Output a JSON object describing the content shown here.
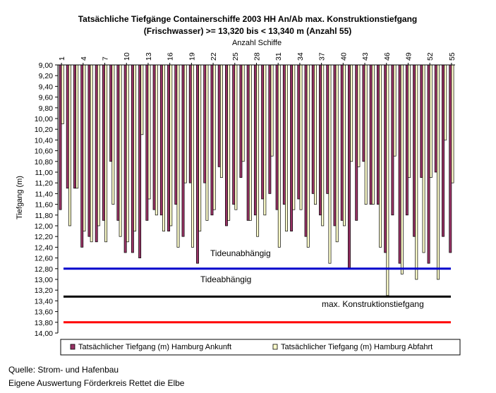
{
  "chart_data": {
    "type": "bar",
    "title_line1": "Tatsächliche Tiefgänge Containerschiffe 2003 HH An/Ab max. Konstruktionstiefgang",
    "title_line2": "(Frischwasser) >= 13,320 bis < 13,340 m (Anzahl 55)",
    "xlabel": "Anzahl Schiffe",
    "ylabel": "Tiefgang (m)",
    "ylim": [
      9.0,
      14.0
    ],
    "y_inverted": true,
    "y_ticks": [
      "9,00",
      "9,20",
      "9,40",
      "9,60",
      "9,80",
      "10,00",
      "10,20",
      "10,40",
      "10,60",
      "10,80",
      "11,00",
      "11,20",
      "11,40",
      "11,60",
      "11,80",
      "12,00",
      "12,20",
      "12,40",
      "12,60",
      "12,80",
      "13,00",
      "13,20",
      "13,40",
      "13,60",
      "13,80",
      "14,00"
    ],
    "x_ticks": [
      "1",
      "4",
      "7",
      "10",
      "13",
      "16",
      "19",
      "22",
      "25",
      "28",
      "31",
      "34",
      "37",
      "40",
      "43",
      "46",
      "49",
      "52",
      "55"
    ],
    "categories": [
      1,
      2,
      3,
      4,
      5,
      6,
      7,
      8,
      9,
      10,
      11,
      12,
      13,
      14,
      15,
      16,
      17,
      18,
      19,
      20,
      21,
      22,
      23,
      24,
      25,
      26,
      27,
      28,
      29,
      30,
      31,
      32,
      33,
      34,
      35,
      36,
      37,
      38,
      39,
      40,
      41,
      42,
      43,
      44,
      45,
      46,
      47,
      48,
      49,
      50,
      51,
      52,
      53,
      54,
      55
    ],
    "series": [
      {
        "name": "Tatsächlicher Tiefgang (m) Hamburg Ankunft",
        "color": "#993366",
        "values": [
          11.7,
          11.3,
          11.3,
          12.4,
          12.2,
          12.3,
          11.9,
          10.8,
          11.9,
          12.5,
          12.5,
          12.6,
          11.9,
          11.7,
          11.8,
          12.1,
          11.6,
          12.2,
          11.2,
          12.7,
          11.2,
          11.8,
          10.9,
          12.0,
          11.6,
          11.1,
          11.9,
          11.8,
          11.5,
          11.4,
          11.7,
          11.6,
          12.1,
          11.5,
          12.2,
          11.4,
          11.8,
          11.4,
          12.0,
          11.9,
          12.8,
          11.9,
          10.8,
          11.6,
          11.6,
          12.5,
          11.8,
          12.7,
          11.8,
          12.2,
          11.1,
          12.7,
          11.0,
          12.2,
          12.5
        ]
      },
      {
        "name": "Tatsächlicher Tiefgang (m) Hamburg Abfahrt",
        "color": "#ffffcc",
        "values": [
          10.1,
          12.0,
          11.3,
          12.1,
          12.3,
          12.0,
          12.3,
          11.6,
          12.2,
          12.3,
          12.1,
          10.3,
          11.5,
          11.8,
          12.1,
          12.0,
          12.4,
          11.2,
          12.4,
          12.1,
          11.9,
          11.7,
          11.1,
          11.9,
          11.7,
          10.8,
          11.9,
          12.2,
          11.8,
          10.7,
          12.4,
          12.1,
          11.7,
          11.7,
          12.4,
          11.6,
          12.0,
          12.7,
          12.3,
          12.0,
          10.8,
          10.9,
          11.6,
          11.6,
          12.4,
          13.3,
          10.7,
          12.9,
          11.1,
          13.0,
          12.5,
          11.1,
          13.0,
          10.4,
          11.2
        ]
      }
    ],
    "reference_lines": [
      {
        "value": 12.8,
        "color": "#0000cc",
        "label": "Tideunabhängig"
      },
      {
        "value": 13.32,
        "color": "#000000",
        "label": "max. Konstruktionstiefgang"
      },
      {
        "value": 13.8,
        "color": "#ff0000",
        "label": ""
      }
    ],
    "annotations": [
      "Tideunabhängig",
      "Tideabhängig",
      "max. Konstruktionstiefgang"
    ],
    "legend_position": "bottom",
    "grid": false
  },
  "source": {
    "line1": "Quelle: Strom- und Hafenbau",
    "line2": "Eigene Auswertung Förderkreis Rettet die Elbe"
  }
}
